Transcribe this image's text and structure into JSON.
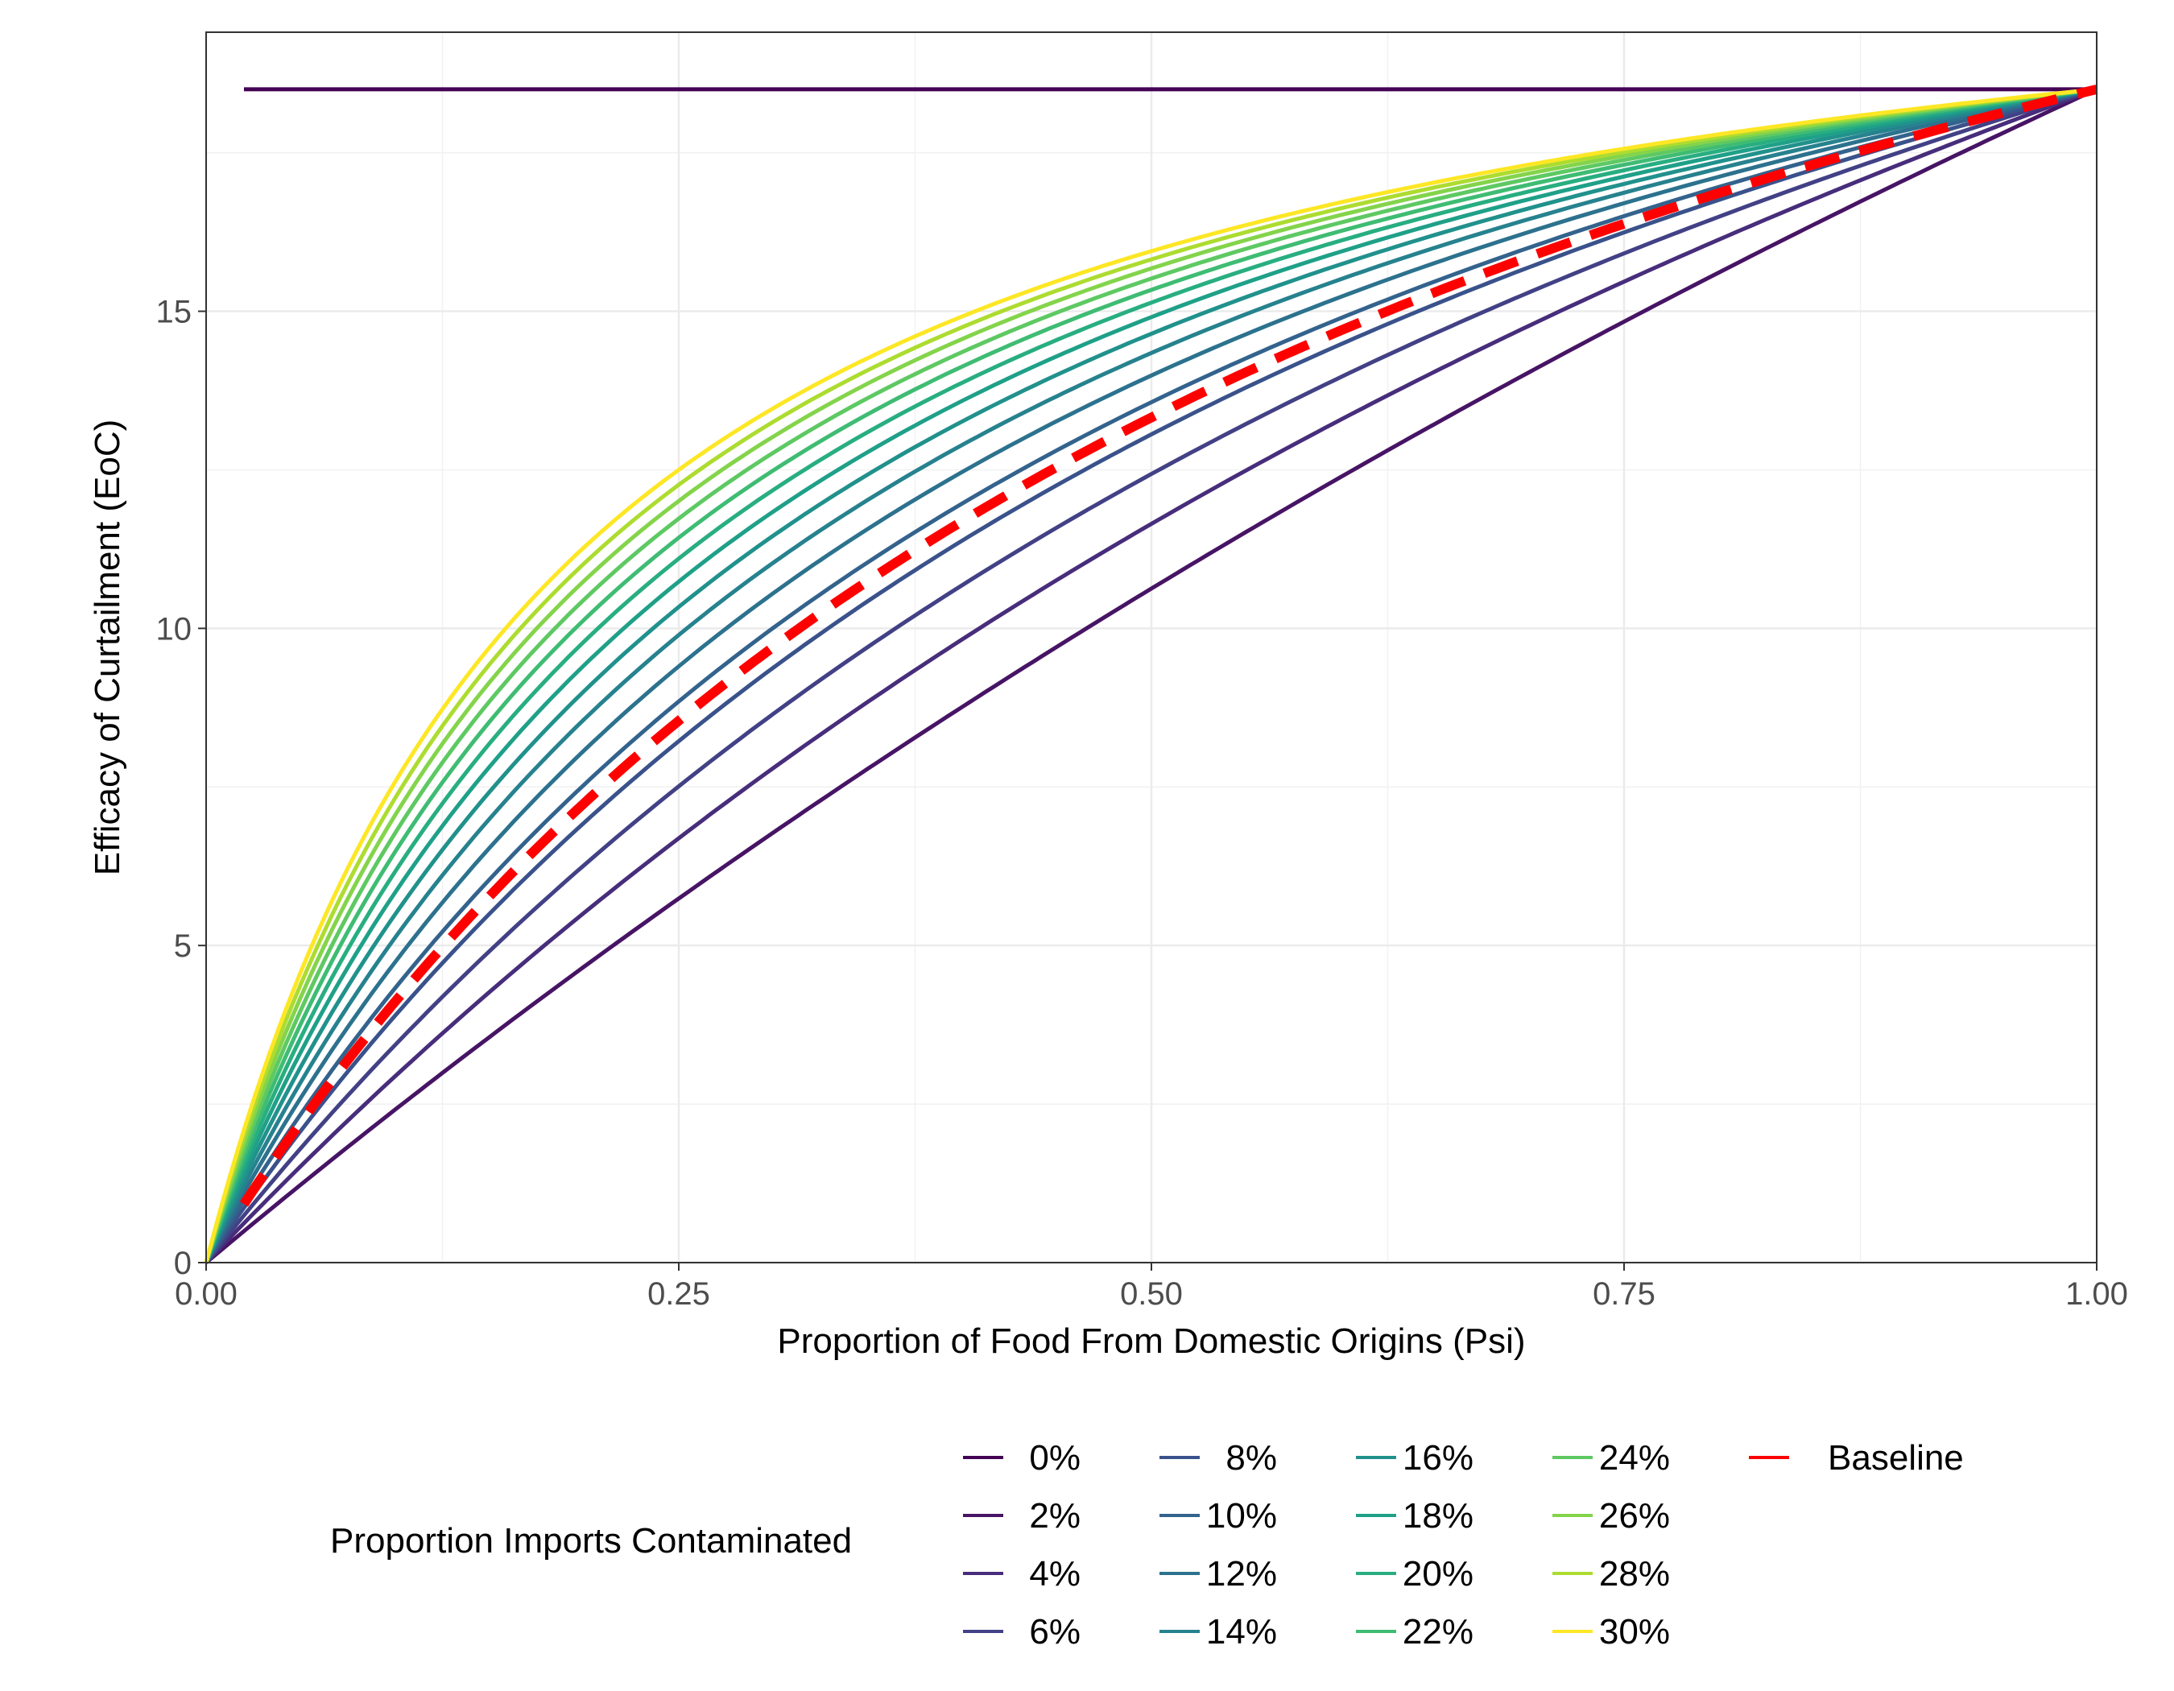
{
  "chart_data": {
    "type": "line",
    "title": "",
    "xlabel": "Proportion of Food From Domestic Origins (Psi)",
    "ylabel": "Efficacy of Curtailment (EoC)",
    "xlim": [
      0,
      1
    ],
    "ylim": [
      0,
      19.4
    ],
    "x_ticks": [
      0,
      0.25,
      0.5,
      0.75,
      1
    ],
    "x_tick_labels": [
      "0.00",
      "0.25",
      "0.50",
      "0.75",
      "1.00"
    ],
    "y_ticks": [
      0,
      5,
      10,
      15
    ],
    "y_tick_labels": [
      "0",
      "5",
      "10",
      "15"
    ],
    "grid": true,
    "legend": {
      "title": "Proportion Imports Contaminated",
      "position": "bottom"
    },
    "x_start": 0.02,
    "x_end": 1.0,
    "eoc_max": 18.5,
    "series": [
      {
        "name": "0%",
        "contamination": 0.0,
        "color": "#440154"
      },
      {
        "name": "2%",
        "contamination": 0.02,
        "color": "#471465"
      },
      {
        "name": "4%",
        "contamination": 0.04,
        "color": "#472D7B"
      },
      {
        "name": "6%",
        "contamination": 0.06,
        "color": "#424186"
      },
      {
        "name": "8%",
        "contamination": 0.08,
        "color": "#3A528B"
      },
      {
        "name": "10%",
        "contamination": 0.1,
        "color": "#33638D"
      },
      {
        "name": "12%",
        "contamination": 0.12,
        "color": "#2C728E"
      },
      {
        "name": "14%",
        "contamination": 0.14,
        "color": "#26828E"
      },
      {
        "name": "16%",
        "contamination": 0.16,
        "color": "#21918C"
      },
      {
        "name": "18%",
        "contamination": 0.18,
        "color": "#1FA088"
      },
      {
        "name": "20%",
        "contamination": 0.2,
        "color": "#28AE80"
      },
      {
        "name": "22%",
        "contamination": 0.22,
        "color": "#3FBC73"
      },
      {
        "name": "24%",
        "contamination": 0.24,
        "color": "#5EC962"
      },
      {
        "name": "26%",
        "contamination": 0.26,
        "color": "#84D44B"
      },
      {
        "name": "28%",
        "contamination": 0.28,
        "color": "#ADDC30"
      },
      {
        "name": "30%",
        "contamination": 0.3,
        "color": "#FDE725"
      }
    ],
    "baseline": {
      "name": "Baseline",
      "contamination": 0.09,
      "color": "#FF0000",
      "style": "dashed"
    }
  }
}
